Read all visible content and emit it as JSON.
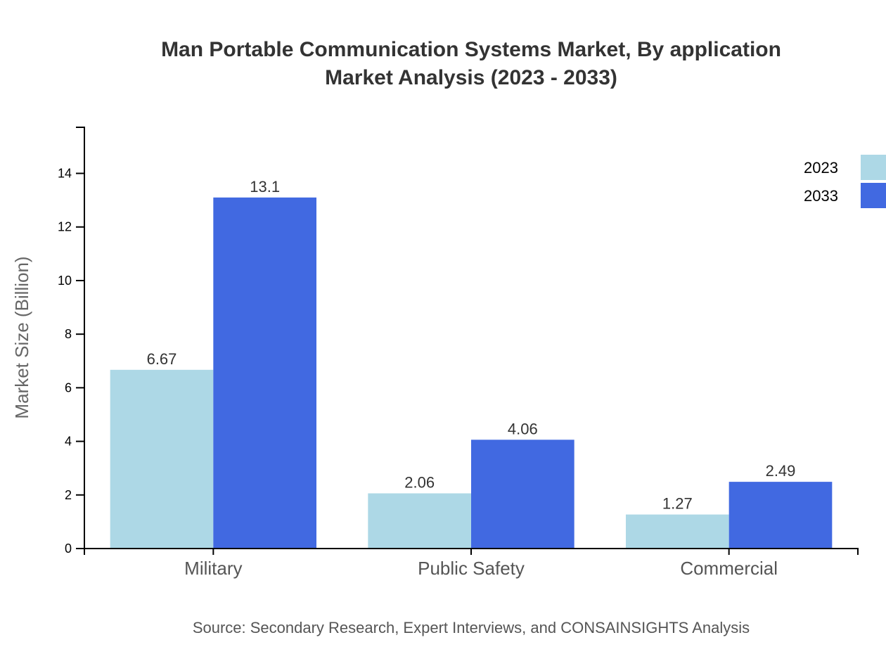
{
  "chart_data": {
    "type": "bar",
    "title": [
      "Man Portable Communication Systems Market, By application",
      "Market Analysis (2023 - 2033)"
    ],
    "xlabel": "",
    "ylabel": "Market Size (Billion)",
    "categories": [
      "Military",
      "Public Safety",
      "Commercial"
    ],
    "series": [
      {
        "name": "2023",
        "values": [
          6.67,
          2.06,
          1.27
        ],
        "color": "#add8e6"
      },
      {
        "name": "2033",
        "values": [
          13.1,
          4.06,
          2.49
        ],
        "color": "#4169e1"
      }
    ],
    "ylim": [
      0,
      15.72
    ],
    "yticks": [
      0,
      2,
      4,
      6,
      8,
      10,
      12,
      14
    ],
    "grid": false,
    "legend": "top-right",
    "source": "Source: Secondary Research, Expert Interviews, and CONSAINSIGHTS Analysis"
  }
}
